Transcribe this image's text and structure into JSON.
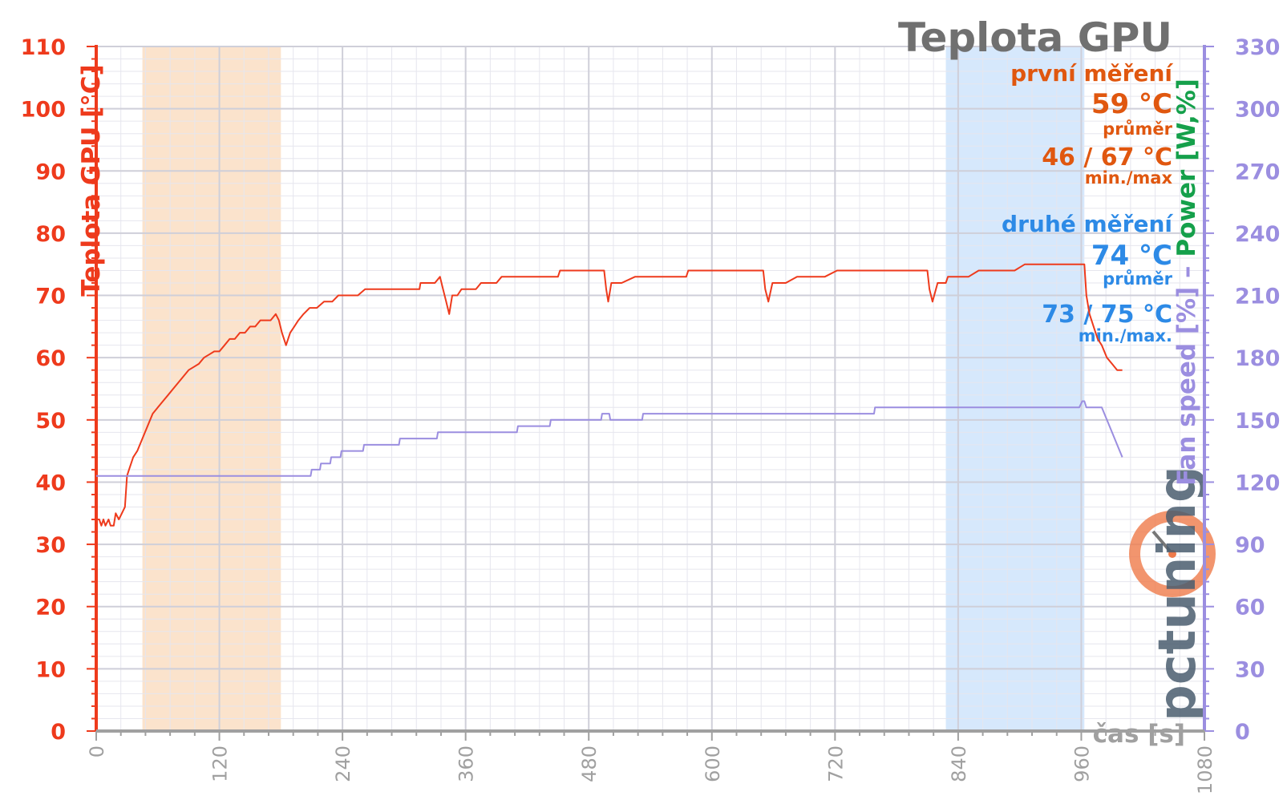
{
  "chart_data": {
    "type": "line",
    "title": "Teplota GPU",
    "xlabel": "čas [s]",
    "ylabel_left": "Teplota GPU [°C]",
    "ylabel_right_parts": [
      "Fan speed [%]",
      " – ",
      "Power [W,%]"
    ],
    "xlim": [
      0,
      1080
    ],
    "ylim_left": [
      0,
      110
    ],
    "ylim_right": [
      0,
      330
    ],
    "x_ticks": [
      0,
      120,
      240,
      360,
      480,
      600,
      720,
      840,
      960,
      1080
    ],
    "y_ticks_left": [
      0,
      10,
      20,
      30,
      40,
      50,
      60,
      70,
      80,
      90,
      100,
      110
    ],
    "y_ticks_right": [
      0,
      30,
      60,
      90,
      120,
      150,
      180,
      210,
      240,
      270,
      300,
      330
    ],
    "grid": true,
    "highlight_bands": [
      {
        "x_start": 45,
        "x_end": 180,
        "color": "#fbe3cc"
      },
      {
        "x_start": 828,
        "x_end": 963,
        "color": "#d6e8fc"
      }
    ],
    "series": [
      {
        "name": "Teplota GPU",
        "color": "#ee3a1c",
        "axis": "left",
        "points": [
          [
            0,
            34
          ],
          [
            3,
            34
          ],
          [
            5,
            33
          ],
          [
            7,
            34
          ],
          [
            9,
            33
          ],
          [
            12,
            34
          ],
          [
            14,
            33
          ],
          [
            17,
            33
          ],
          [
            19,
            35
          ],
          [
            22,
            34
          ],
          [
            25,
            35
          ],
          [
            28,
            36
          ],
          [
            30,
            41
          ],
          [
            32,
            42
          ],
          [
            36,
            44
          ],
          [
            40,
            45
          ],
          [
            45,
            47
          ],
          [
            50,
            49
          ],
          [
            55,
            51
          ],
          [
            60,
            52
          ],
          [
            65,
            53
          ],
          [
            70,
            54
          ],
          [
            75,
            55
          ],
          [
            80,
            56
          ],
          [
            85,
            57
          ],
          [
            90,
            58
          ],
          [
            95,
            58.5
          ],
          [
            100,
            59
          ],
          [
            105,
            60
          ],
          [
            110,
            60.5
          ],
          [
            115,
            61
          ],
          [
            120,
            61
          ],
          [
            125,
            62
          ],
          [
            130,
            63
          ],
          [
            135,
            63
          ],
          [
            140,
            64
          ],
          [
            145,
            64
          ],
          [
            150,
            65
          ],
          [
            155,
            65
          ],
          [
            160,
            66
          ],
          [
            165,
            66
          ],
          [
            170,
            66
          ],
          [
            175,
            67
          ],
          [
            178,
            66
          ],
          [
            181,
            64
          ],
          [
            185,
            62
          ],
          [
            189,
            64
          ],
          [
            193,
            65
          ],
          [
            197,
            66
          ],
          [
            202,
            67
          ],
          [
            208,
            68
          ],
          [
            215,
            68
          ],
          [
            222,
            69
          ],
          [
            230,
            69
          ],
          [
            236,
            70
          ],
          [
            245,
            70
          ],
          [
            255,
            70
          ],
          [
            262,
            71
          ],
          [
            270,
            71
          ],
          [
            280,
            71
          ],
          [
            300,
            71
          ],
          [
            315,
            71
          ],
          [
            316,
            72
          ],
          [
            330,
            72
          ],
          [
            335,
            73
          ],
          [
            338,
            71
          ],
          [
            341,
            69
          ],
          [
            344,
            67
          ],
          [
            347,
            70
          ],
          [
            352,
            70
          ],
          [
            356,
            71
          ],
          [
            370,
            71
          ],
          [
            375,
            72
          ],
          [
            390,
            72
          ],
          [
            395,
            73
          ],
          [
            420,
            73
          ],
          [
            450,
            73
          ],
          [
            452,
            74
          ],
          [
            470,
            74
          ],
          [
            480,
            74
          ],
          [
            495,
            74
          ],
          [
            497,
            71
          ],
          [
            499,
            69
          ],
          [
            502,
            72
          ],
          [
            512,
            72
          ],
          [
            525,
            73
          ],
          [
            560,
            73
          ],
          [
            575,
            73
          ],
          [
            577,
            74
          ],
          [
            600,
            74
          ],
          [
            620,
            74
          ],
          [
            650,
            74
          ],
          [
            652,
            71
          ],
          [
            655,
            69
          ],
          [
            659,
            72
          ],
          [
            672,
            72
          ],
          [
            683,
            73
          ],
          [
            710,
            73
          ],
          [
            722,
            74
          ],
          [
            760,
            74
          ],
          [
            800,
            74
          ],
          [
            810,
            74
          ],
          [
            812,
            71
          ],
          [
            815,
            69
          ],
          [
            820,
            72
          ],
          [
            828,
            72
          ],
          [
            830,
            73
          ],
          [
            850,
            73
          ],
          [
            860,
            74
          ],
          [
            895,
            74
          ],
          [
            905,
            75
          ],
          [
            960,
            75
          ],
          [
            963,
            75
          ],
          [
            965,
            70
          ],
          [
            968,
            67
          ],
          [
            972,
            65
          ],
          [
            976,
            63
          ],
          [
            980,
            62
          ],
          [
            985,
            60
          ],
          [
            990,
            59
          ],
          [
            995,
            58
          ],
          [
            1000,
            58
          ]
        ]
      },
      {
        "name": "Fan speed",
        "color": "#9b8ee0",
        "axis": "right",
        "points": [
          [
            0,
            123
          ],
          [
            100,
            123
          ],
          [
            200,
            123
          ],
          [
            209,
            123
          ],
          [
            210,
            126
          ],
          [
            218,
            126
          ],
          [
            219,
            129
          ],
          [
            228,
            129
          ],
          [
            229,
            132
          ],
          [
            238,
            132
          ],
          [
            239,
            135
          ],
          [
            260,
            135
          ],
          [
            261,
            138
          ],
          [
            295,
            138
          ],
          [
            296,
            141
          ],
          [
            332,
            141
          ],
          [
            333,
            144
          ],
          [
            410,
            144
          ],
          [
            411,
            147
          ],
          [
            442,
            147
          ],
          [
            443,
            150
          ],
          [
            492,
            150
          ],
          [
            493,
            153
          ],
          [
            500,
            153
          ],
          [
            501,
            150
          ],
          [
            532,
            150
          ],
          [
            533,
            153
          ],
          [
            758,
            153
          ],
          [
            759,
            156
          ],
          [
            958,
            156
          ],
          [
            961,
            159
          ],
          [
            963,
            159
          ],
          [
            965,
            156
          ],
          [
            980,
            156
          ],
          [
            985,
            150
          ],
          [
            990,
            144
          ],
          [
            995,
            138
          ],
          [
            1000,
            132
          ]
        ]
      }
    ],
    "annotations": {
      "first_label": "první měření",
      "first_avg": "59 °C",
      "first_avg_label": "průměr",
      "first_minmax": "46 / 67 °C",
      "first_minmax_label": "min./max",
      "second_label": "druhé měření",
      "second_avg": "74 °C",
      "second_avg_label": "průměr",
      "second_minmax": "73 / 75 °C",
      "second_minmax_label": "min./max."
    },
    "colors": {
      "left_axis": "#ee3a1c",
      "right_axis": "#9b8ee0",
      "power_label": "#15a04b",
      "title": "#707070",
      "first": "#e0570f",
      "second": "#2d8ae6",
      "band_first": "#fbe3cc",
      "band_second": "#d6e8fc",
      "x_axis": "#a0a0a0"
    },
    "watermark_text": "pctuning"
  }
}
